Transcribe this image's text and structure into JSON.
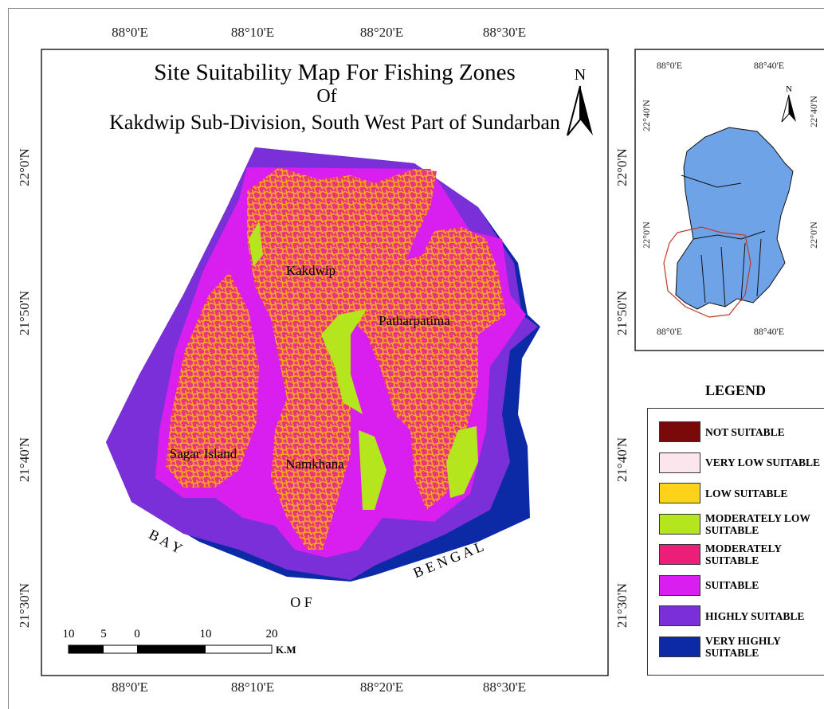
{
  "title": [
    "Site Suitability Map For Fishing Zones",
    "Of",
    "Kakdwip Sub-Division, South West Part of Sundarban"
  ],
  "map": {
    "longitude_labels": [
      "88°0'E",
      "88°10'E",
      "88°20'E",
      "88°30'E"
    ],
    "latitude_labels": [
      "22°0'N",
      "21°50'N",
      "21°40'N",
      "21°30'N"
    ],
    "places": [
      "Kakdwip",
      "Patharpatima",
      "Sagar Island",
      "Namkhana"
    ],
    "sea_labels": [
      "B A Y",
      "O F",
      "B E N G A L"
    ],
    "north": "N",
    "scale_bar": {
      "ticks": [
        "10",
        "5",
        "0",
        "10",
        "20"
      ],
      "unit": "K.M"
    }
  },
  "inset": {
    "longitude_labels": [
      "88°0'E",
      "88°40'E"
    ],
    "latitude_labels": [
      "22°40'N",
      "22°0'N"
    ],
    "north": "N"
  },
  "legend": {
    "title": "LEGEND",
    "items": [
      {
        "label": "NOT SUITABLE",
        "color": "#7a0a0a"
      },
      {
        "label": "VERY LOW SUITABLE",
        "color": "#fbe6ee"
      },
      {
        "label": "LOW SUITABLE",
        "color": "#ffd21a"
      },
      {
        "label": "MODERATELY LOW SUITABLE",
        "color": "#b5e61d"
      },
      {
        "label": "MODERATELY SUITABLE",
        "color": "#ec1f78"
      },
      {
        "label": "SUITABLE",
        "color": "#d81ff0"
      },
      {
        "label": "HIGHLY SUITABLE",
        "color": "#7a2fd8"
      },
      {
        "label": "VERY HIGHLY SUITABLE",
        "color": "#0d2aa6"
      }
    ]
  }
}
